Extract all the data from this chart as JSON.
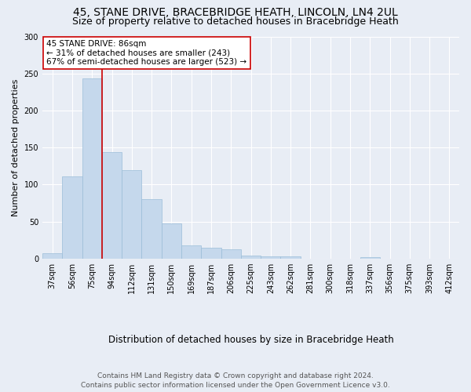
{
  "title": "45, STANE DRIVE, BRACEBRIDGE HEATH, LINCOLN, LN4 2UL",
  "subtitle": "Size of property relative to detached houses in Bracebridge Heath",
  "xlabel": "Distribution of detached houses by size in Bracebridge Heath",
  "ylabel": "Number of detached properties",
  "footer_line1": "Contains HM Land Registry data © Crown copyright and database right 2024.",
  "footer_line2": "Contains public sector information licensed under the Open Government Licence v3.0.",
  "categories": [
    "37sqm",
    "56sqm",
    "75sqm",
    "94sqm",
    "112sqm",
    "131sqm",
    "150sqm",
    "169sqm",
    "187sqm",
    "206sqm",
    "225sqm",
    "243sqm",
    "262sqm",
    "281sqm",
    "300sqm",
    "318sqm",
    "337sqm",
    "356sqm",
    "375sqm",
    "393sqm",
    "412sqm"
  ],
  "values": [
    7,
    111,
    243,
    144,
    120,
    80,
    48,
    18,
    15,
    13,
    4,
    3,
    3,
    0,
    0,
    0,
    2,
    0,
    0,
    0,
    0
  ],
  "bar_color": "#c5d8ec",
  "bar_edge_color": "#9bbdd8",
  "vline_x_idx": 2,
  "vline_color": "#cc0000",
  "annotation_text": "45 STANE DRIVE: 86sqm\n← 31% of detached houses are smaller (243)\n67% of semi-detached houses are larger (523) →",
  "annotation_box_facecolor": "#ffffff",
  "annotation_box_edgecolor": "#cc0000",
  "ylim": [
    0,
    300
  ],
  "yticks": [
    0,
    50,
    100,
    150,
    200,
    250,
    300
  ],
  "bg_color": "#e8edf5",
  "grid_color": "#ffffff",
  "title_fontsize": 10,
  "subtitle_fontsize": 9,
  "annotation_fontsize": 7.5,
  "tick_fontsize": 7,
  "ylabel_fontsize": 8,
  "xlabel_fontsize": 8.5,
  "footer_fontsize": 6.5
}
